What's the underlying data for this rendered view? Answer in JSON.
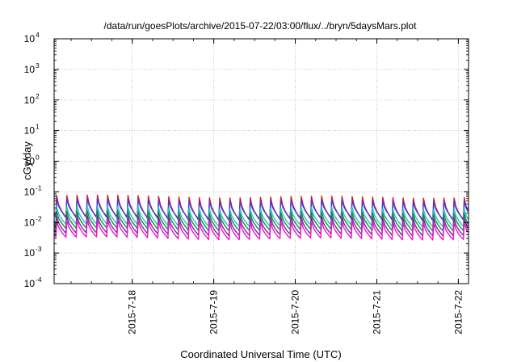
{
  "chart_data": {
    "type": "line",
    "title": "/data/run/goesPlots/archive/2015-07-22/03:00/flux/../bryn/5daysMars.plot",
    "xlabel": "Coordinated Universal Time (UTC)",
    "ylabel": "cGy/day",
    "y_scale": "log",
    "ylim": [
      0.0001,
      10000
    ],
    "xlim": [
      "2015-07-17 01:00",
      "2015-07-22 03:00"
    ],
    "grid": true,
    "y_ticks": [
      {
        "value": 0.0001,
        "base": "10",
        "exp": "-4"
      },
      {
        "value": 0.001,
        "base": "10",
        "exp": "-3"
      },
      {
        "value": 0.01,
        "base": "10",
        "exp": "-2"
      },
      {
        "value": 0.1,
        "base": "10",
        "exp": "-1"
      },
      {
        "value": 1,
        "base": "10",
        "exp": "0"
      },
      {
        "value": 10,
        "base": "10",
        "exp": "1"
      },
      {
        "value": 100,
        "base": "10",
        "exp": "2"
      },
      {
        "value": 1000,
        "base": "10",
        "exp": "3"
      },
      {
        "value": 10000,
        "base": "10",
        "exp": "4"
      }
    ],
    "x_ticks": [
      {
        "value": "2015-07-18 00:00",
        "label": "2015-7-18"
      },
      {
        "value": "2015-07-19 00:00",
        "label": "2015-7-19"
      },
      {
        "value": "2015-07-20 00:00",
        "label": "2015-7-20"
      },
      {
        "value": "2015-07-21 00:00",
        "label": "2015-7-21"
      },
      {
        "value": "2015-07-22 00:00",
        "label": "2015-7-22"
      }
    ],
    "pattern": {
      "period_hours": 3,
      "description": "sawtooth: sharp rise each 3-hour interval, then decay"
    },
    "series": [
      {
        "color": "#e8151f",
        "peak": 0.065,
        "trough": 0.012
      },
      {
        "color": "#3a3fe0",
        "peak": 0.05,
        "trough": 0.013
      },
      {
        "color": "#22c7c8",
        "peak": 0.028,
        "trough": 0.0075
      },
      {
        "color": "#1d8a3a",
        "peak": 0.02,
        "trough": 0.0055
      },
      {
        "color": "#6a2fa8",
        "peak": 0.014,
        "trough": 0.0038
      },
      {
        "color": "#ee18c8",
        "peak": 0.01,
        "trough": 0.0028
      }
    ]
  }
}
